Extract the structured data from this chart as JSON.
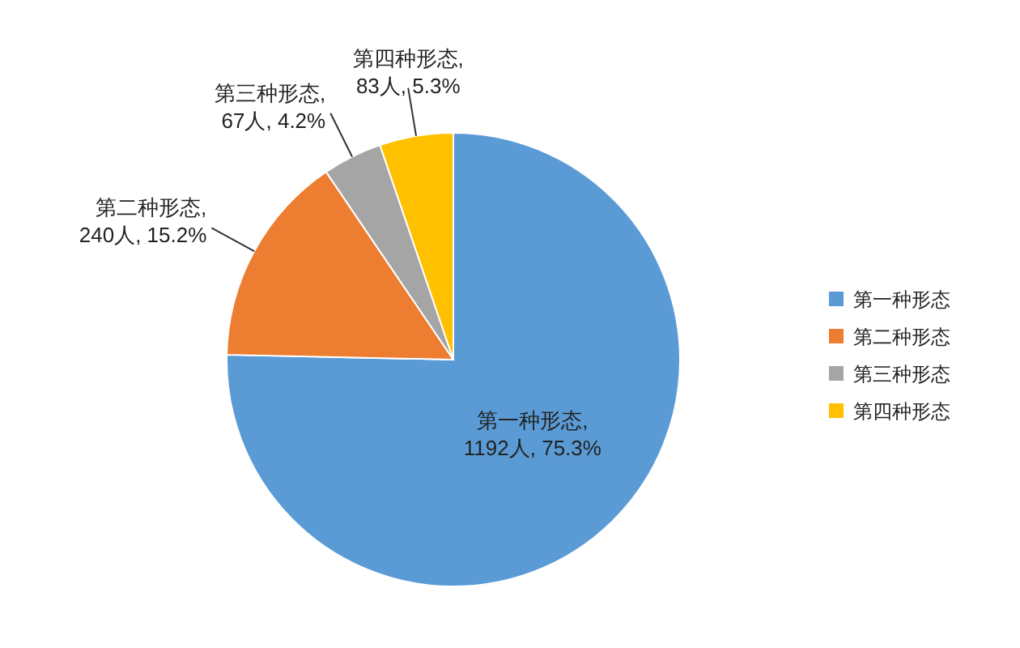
{
  "chart_data": {
    "type": "pie",
    "categories": [
      "第一种形态",
      "第二种形态",
      "第三种形态",
      "第四种形态"
    ],
    "values": [
      1192,
      240,
      67,
      83
    ],
    "value_labels": [
      "第一种形态, 1192人, 75.3%",
      "第二种形态, 240人, 15.2%",
      "第三种形态, 67人, 4.2%",
      "第四种形态, 83人, 5.3%"
    ],
    "colors": [
      "#5b9bd5",
      "#ed7d31",
      "#a5a5a5",
      "#ffc000"
    ],
    "legend": "right"
  }
}
